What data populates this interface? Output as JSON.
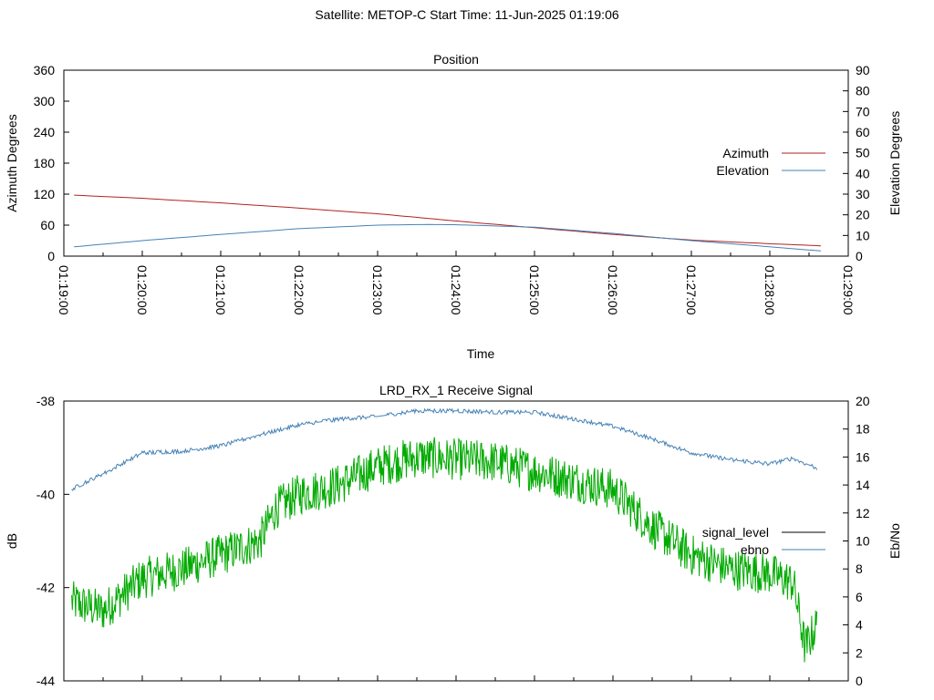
{
  "header": {
    "satellite_label": "Satellite: METOP-C",
    "start_time_label": "Start Time: 11-Jun-2025 01:19:06"
  },
  "chart_data": [
    {
      "type": "line",
      "title": "Position",
      "xlabel": "Time",
      "ylabel": "Azimuth Degrees",
      "y2label": "Elevation Degrees",
      "x_ticks": [
        "01:19:00",
        "01:20:00",
        "01:21:00",
        "01:22:00",
        "01:23:00",
        "01:24:00",
        "01:25:00",
        "01:26:00",
        "01:27:00",
        "01:28:00",
        "01:29:00"
      ],
      "x_range_minutes": [
        0,
        10
      ],
      "ylim": [
        0,
        360
      ],
      "y_ticks": [
        0,
        60,
        120,
        180,
        240,
        300,
        360
      ],
      "y2lim": [
        0,
        90
      ],
      "y2_ticks": [
        0,
        10,
        20,
        30,
        40,
        50,
        60,
        70,
        80,
        90
      ],
      "legend": "right",
      "series": [
        {
          "name": "Azimuth",
          "axis": "y",
          "color": "#b22222",
          "points": [
            [
              0.13,
              118
            ],
            [
              1,
              112
            ],
            [
              2,
              103
            ],
            [
              3,
              93
            ],
            [
              4,
              82
            ],
            [
              5,
              68
            ],
            [
              6,
              55
            ],
            [
              7,
              42
            ],
            [
              8,
              31
            ],
            [
              9,
              24
            ],
            [
              9.65,
              20
            ]
          ]
        },
        {
          "name": "Elevation",
          "axis": "y2",
          "color": "#4682b4",
          "points": [
            [
              0.13,
              4.5
            ],
            [
              1,
              7.5
            ],
            [
              2,
              10.5
            ],
            [
              3,
              13.3
            ],
            [
              4,
              15
            ],
            [
              4.6,
              15.3
            ],
            [
              5,
              15.2
            ],
            [
              6,
              14
            ],
            [
              7,
              11
            ],
            [
              8,
              7.5
            ],
            [
              9,
              4.5
            ],
            [
              9.65,
              2.5
            ]
          ]
        }
      ]
    },
    {
      "type": "line",
      "title": "LRD_RX_1 Receive Signal",
      "xlabel": "",
      "ylabel": "dB",
      "y2label": "Eb/No",
      "x_range_minutes": [
        0,
        10
      ],
      "ylim": [
        -44,
        -38
      ],
      "y_ticks": [
        -44,
        -42,
        -40,
        -38
      ],
      "y2lim": [
        0,
        20
      ],
      "y2_ticks": [
        0,
        2,
        4,
        6,
        8,
        10,
        12,
        14,
        16,
        18,
        20
      ],
      "legend": "right",
      "series": [
        {
          "name": "signal_level",
          "axis": "y",
          "color": "#00aa00",
          "points": [
            [
              0.1,
              -42.3
            ],
            [
              0.5,
              -42.5
            ],
            [
              1,
              -41.8
            ],
            [
              1.5,
              -41.6
            ],
            [
              2,
              -41.3
            ],
            [
              2.5,
              -41.0
            ],
            [
              2.7,
              -40.3
            ],
            [
              3,
              -40.0
            ],
            [
              3.5,
              -39.8
            ],
            [
              4,
              -39.4
            ],
            [
              4.5,
              -39.2
            ],
            [
              5,
              -39.25
            ],
            [
              5.5,
              -39.3
            ],
            [
              6,
              -39.5
            ],
            [
              6.5,
              -39.7
            ],
            [
              7,
              -39.9
            ],
            [
              7.5,
              -40.7
            ],
            [
              8,
              -41.3
            ],
            [
              8.5,
              -41.6
            ],
            [
              9,
              -41.7
            ],
            [
              9.3,
              -41.9
            ],
            [
              9.45,
              -43.3
            ],
            [
              9.6,
              -42.8
            ]
          ]
        },
        {
          "name": "ebno",
          "axis": "y2",
          "color": "#4682b4",
          "points": [
            [
              0.1,
              13.7
            ],
            [
              0.5,
              14.8
            ],
            [
              1,
              16.3
            ],
            [
              1.5,
              16.4
            ],
            [
              2,
              16.8
            ],
            [
              2.5,
              17.6
            ],
            [
              3,
              18.3
            ],
            [
              3.5,
              18.7
            ],
            [
              4,
              18.9
            ],
            [
              4.5,
              19.3
            ],
            [
              5,
              19.3
            ],
            [
              5.5,
              19.2
            ],
            [
              6,
              19.2
            ],
            [
              6.5,
              18.7
            ],
            [
              7,
              18.2
            ],
            [
              7.5,
              17.3
            ],
            [
              8,
              16.3
            ],
            [
              8.5,
              15.8
            ],
            [
              9,
              15.5
            ],
            [
              9.3,
              15.9
            ],
            [
              9.6,
              15.2
            ]
          ]
        }
      ]
    }
  ]
}
